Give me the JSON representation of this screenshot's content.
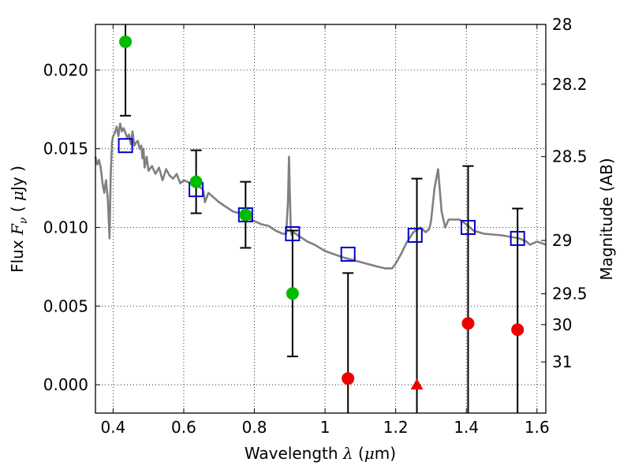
{
  "chart_data": {
    "type": "scatter",
    "xlabel": "Wavelength  λ (μm)",
    "ylabel": "Flux  Fν  ( μJy )",
    "ylabel2": "Magnitude (AB)",
    "xlim": [
      0.35,
      1.625
    ],
    "ylim": [
      -0.0018,
      0.0229
    ],
    "grid": true,
    "x_ticks": [
      0.4,
      0.6,
      0.8,
      1.0,
      1.2,
      1.4,
      1.6
    ],
    "x_tick_labels": [
      "0.4",
      "0.6",
      "0.8",
      "1",
      "1.2",
      "1.4",
      "1.6"
    ],
    "y_ticks": [
      0.0,
      0.005,
      0.01,
      0.015,
      0.02
    ],
    "y_tick_labels": [
      "0.000",
      "0.005",
      "0.010",
      "0.015",
      "0.020"
    ],
    "mag_ticks": [
      {
        "label": "28",
        "flux": 0.0229
      },
      {
        "label": "28.2",
        "flux": 0.0191
      },
      {
        "label": "28.5",
        "flux": 0.0145
      },
      {
        "label": "29",
        "flux": 0.00917
      },
      {
        "label": "29.5",
        "flux": 0.00578
      },
      {
        "label": "30",
        "flux": 0.00382
      },
      {
        "label": "31",
        "flux": 0.00145
      }
    ],
    "model_spectrum": {
      "color": "#808080",
      "x": [
        0.35,
        0.355,
        0.36,
        0.365,
        0.37,
        0.375,
        0.38,
        0.385,
        0.39,
        0.393,
        0.397,
        0.4,
        0.405,
        0.41,
        0.415,
        0.42,
        0.425,
        0.43,
        0.435,
        0.44,
        0.445,
        0.45,
        0.455,
        0.46,
        0.465,
        0.47,
        0.475,
        0.48,
        0.483,
        0.486,
        0.489,
        0.495,
        0.5,
        0.51,
        0.52,
        0.53,
        0.54,
        0.55,
        0.56,
        0.57,
        0.58,
        0.59,
        0.6,
        0.62,
        0.64,
        0.65,
        0.656,
        0.66,
        0.67,
        0.68,
        0.7,
        0.72,
        0.74,
        0.76,
        0.78,
        0.8,
        0.82,
        0.84,
        0.86,
        0.88,
        0.89,
        0.895,
        0.898,
        0.9,
        0.903,
        0.906,
        0.91,
        0.93,
        0.95,
        0.97,
        1.0,
        1.05,
        1.1,
        1.15,
        1.17,
        1.19,
        1.2,
        1.215,
        1.23,
        1.25,
        1.27,
        1.285,
        1.295,
        1.3,
        1.31,
        1.32,
        1.33,
        1.34,
        1.35,
        1.38,
        1.4,
        1.42,
        1.45,
        1.5,
        1.55,
        1.57,
        1.58,
        1.6,
        1.625
      ],
      "y": [
        0.0145,
        0.014,
        0.0143,
        0.0138,
        0.0128,
        0.0122,
        0.013,
        0.0118,
        0.0093,
        0.0132,
        0.0154,
        0.0158,
        0.016,
        0.0164,
        0.0158,
        0.0166,
        0.0161,
        0.0163,
        0.016,
        0.0157,
        0.0159,
        0.0153,
        0.0161,
        0.0152,
        0.0154,
        0.0155,
        0.015,
        0.0152,
        0.0144,
        0.015,
        0.0138,
        0.0145,
        0.0136,
        0.0139,
        0.0134,
        0.0138,
        0.013,
        0.0137,
        0.0133,
        0.0131,
        0.0134,
        0.0128,
        0.013,
        0.0128,
        0.0126,
        0.0125,
        0.0123,
        0.0116,
        0.0122,
        0.012,
        0.0116,
        0.0113,
        0.011,
        0.0109,
        0.0106,
        0.0104,
        0.0102,
        0.0101,
        0.0098,
        0.0096,
        0.0096,
        0.0116,
        0.0145,
        0.0125,
        0.0098,
        0.0095,
        0.0097,
        0.0094,
        0.0091,
        0.0089,
        0.0085,
        0.0081,
        0.0078,
        0.0075,
        0.0074,
        0.0074,
        0.0077,
        0.0083,
        0.009,
        0.0097,
        0.01,
        0.0097,
        0.0099,
        0.0104,
        0.0125,
        0.0137,
        0.011,
        0.01,
        0.0105,
        0.0105,
        0.0102,
        0.0098,
        0.0096,
        0.0095,
        0.0093,
        0.0091,
        0.0089,
        0.0091,
        0.0089
      ]
    },
    "series": [
      {
        "marker": "square-open",
        "color": "#0000cc",
        "points": [
          {
            "x": 0.435,
            "y": 0.0152
          },
          {
            "x": 0.635,
            "y": 0.0124
          },
          {
            "x": 0.775,
            "y": 0.0108
          },
          {
            "x": 0.908,
            "y": 0.0096
          },
          {
            "x": 1.065,
            "y": 0.0083
          },
          {
            "x": 1.255,
            "y": 0.0095
          },
          {
            "x": 1.405,
            "y": 0.01
          },
          {
            "x": 1.545,
            "y": 0.0093
          }
        ]
      },
      {
        "marker": "circle",
        "color": "#00bb00",
        "points": [
          {
            "x": 0.435,
            "y": 0.0218,
            "err": 0.0047
          },
          {
            "x": 0.635,
            "y": 0.0129,
            "err": 0.002
          },
          {
            "x": 0.775,
            "y": 0.0108,
            "err": 0.0021
          },
          {
            "x": 0.908,
            "y": 0.0058,
            "err": 0.004
          }
        ]
      },
      {
        "marker": "circle",
        "color": "#ee0000",
        "points": [
          {
            "x": 1.065,
            "y": 0.0004,
            "err": 0.0067
          },
          {
            "x": 1.405,
            "y": 0.0039,
            "err": 0.01
          },
          {
            "x": 1.545,
            "y": 0.0035,
            "err": 0.0077
          }
        ]
      },
      {
        "marker": "triangle",
        "color": "#ee0000",
        "points": [
          {
            "x": 1.26,
            "y": 0.0,
            "err": 0.0131
          }
        ]
      }
    ]
  }
}
